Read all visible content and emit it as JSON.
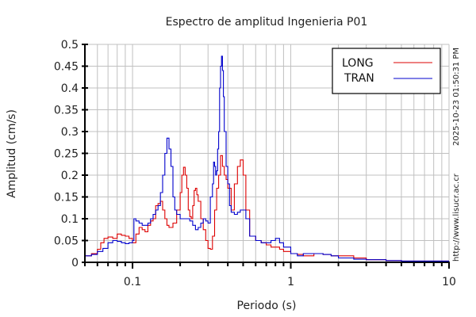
{
  "chart_data": {
    "type": "line",
    "title": "Espectro de amplitud Ingenieria P01",
    "xlabel": "Periodo (s)",
    "ylabel": "Amplitud (cm/s)",
    "xscale": "log",
    "xlim": [
      0.05,
      10
    ],
    "ylim": [
      0,
      0.5
    ],
    "grid": true,
    "legend_position": "upper right",
    "x_tick_labels": [
      "0.1",
      "1",
      "10"
    ],
    "x_ticks": [
      0.1,
      1,
      10
    ],
    "y_tick_labels": [
      "0",
      "0.05",
      "0.1",
      "0.15",
      "0.2",
      "0.25",
      "0.3",
      "0.35",
      "0.4",
      "0.45",
      "0.5"
    ],
    "y_ticks": [
      0,
      0.05,
      0.1,
      0.15,
      0.2,
      0.25,
      0.3,
      0.35,
      0.4,
      0.45,
      0.5
    ],
    "series": [
      {
        "name": "LONG",
        "color": "#dd0000",
        "x": [
          0.05,
          0.055,
          0.06,
          0.063,
          0.066,
          0.07,
          0.075,
          0.08,
          0.085,
          0.09,
          0.095,
          0.1,
          0.105,
          0.11,
          0.115,
          0.12,
          0.125,
          0.13,
          0.135,
          0.14,
          0.145,
          0.15,
          0.155,
          0.16,
          0.165,
          0.17,
          0.18,
          0.19,
          0.2,
          0.205,
          0.21,
          0.215,
          0.22,
          0.225,
          0.23,
          0.235,
          0.24,
          0.245,
          0.25,
          0.255,
          0.26,
          0.27,
          0.28,
          0.29,
          0.3,
          0.31,
          0.32,
          0.33,
          0.34,
          0.35,
          0.36,
          0.37,
          0.38,
          0.39,
          0.4,
          0.42,
          0.44,
          0.46,
          0.48,
          0.5,
          0.52,
          0.55,
          0.6,
          0.65,
          0.7,
          0.75,
          0.8,
          0.85,
          0.9,
          1.0,
          1.1,
          1.2,
          1.4,
          1.6,
          1.8,
          2.0,
          2.5,
          3.0,
          4.0,
          5.0,
          7.0,
          10.0
        ],
        "y": [
          0.015,
          0.02,
          0.03,
          0.045,
          0.055,
          0.058,
          0.055,
          0.065,
          0.062,
          0.06,
          0.055,
          0.045,
          0.065,
          0.08,
          0.075,
          0.07,
          0.085,
          0.095,
          0.1,
          0.13,
          0.135,
          0.14,
          0.12,
          0.1,
          0.085,
          0.08,
          0.09,
          0.12,
          0.16,
          0.2,
          0.218,
          0.2,
          0.17,
          0.12,
          0.105,
          0.1,
          0.13,
          0.165,
          0.17,
          0.155,
          0.14,
          0.1,
          0.075,
          0.05,
          0.032,
          0.03,
          0.06,
          0.12,
          0.17,
          0.2,
          0.245,
          0.22,
          0.2,
          0.19,
          0.17,
          0.12,
          0.18,
          0.22,
          0.235,
          0.2,
          0.12,
          0.06,
          0.05,
          0.045,
          0.04,
          0.035,
          0.035,
          0.03,
          0.025,
          0.02,
          0.018,
          0.015,
          0.02,
          0.018,
          0.015,
          0.015,
          0.01,
          0.006,
          0.004,
          0.003,
          0.003,
          0.003
        ]
      },
      {
        "name": "TRAN",
        "color": "#0000cc",
        "x": [
          0.05,
          0.055,
          0.06,
          0.065,
          0.07,
          0.075,
          0.08,
          0.085,
          0.09,
          0.095,
          0.1,
          0.102,
          0.105,
          0.11,
          0.115,
          0.12,
          0.125,
          0.13,
          0.135,
          0.14,
          0.145,
          0.15,
          0.155,
          0.16,
          0.165,
          0.17,
          0.175,
          0.18,
          0.185,
          0.19,
          0.2,
          0.21,
          0.22,
          0.23,
          0.24,
          0.25,
          0.26,
          0.27,
          0.28,
          0.29,
          0.3,
          0.31,
          0.32,
          0.325,
          0.33,
          0.335,
          0.34,
          0.345,
          0.35,
          0.355,
          0.36,
          0.365,
          0.37,
          0.375,
          0.38,
          0.39,
          0.4,
          0.41,
          0.42,
          0.44,
          0.46,
          0.48,
          0.5,
          0.52,
          0.55,
          0.6,
          0.65,
          0.7,
          0.75,
          0.8,
          0.85,
          0.9,
          1.0,
          1.1,
          1.2,
          1.4,
          1.6,
          1.8,
          2.0,
          2.5,
          3.0,
          4.0,
          5.0,
          7.0,
          10.0
        ],
        "y": [
          0.015,
          0.018,
          0.025,
          0.032,
          0.045,
          0.05,
          0.048,
          0.045,
          0.043,
          0.045,
          0.05,
          0.1,
          0.095,
          0.09,
          0.085,
          0.085,
          0.09,
          0.1,
          0.11,
          0.12,
          0.13,
          0.16,
          0.2,
          0.25,
          0.285,
          0.26,
          0.22,
          0.15,
          0.12,
          0.11,
          0.1,
          0.1,
          0.1,
          0.095,
          0.085,
          0.075,
          0.08,
          0.09,
          0.1,
          0.095,
          0.09,
          0.15,
          0.18,
          0.23,
          0.22,
          0.2,
          0.21,
          0.26,
          0.3,
          0.4,
          0.45,
          0.473,
          0.44,
          0.38,
          0.3,
          0.22,
          0.18,
          0.13,
          0.115,
          0.11,
          0.115,
          0.12,
          0.12,
          0.1,
          0.06,
          0.05,
          0.045,
          0.045,
          0.05,
          0.055,
          0.045,
          0.035,
          0.02,
          0.015,
          0.02,
          0.02,
          0.018,
          0.015,
          0.01,
          0.007,
          0.006,
          0.004,
          0.003,
          0.003,
          0.003
        ]
      }
    ]
  },
  "side_text": {
    "timestamp": "2025-10-23 01:50:31 PM",
    "url": "http://www.lisucr.ac.cr"
  }
}
